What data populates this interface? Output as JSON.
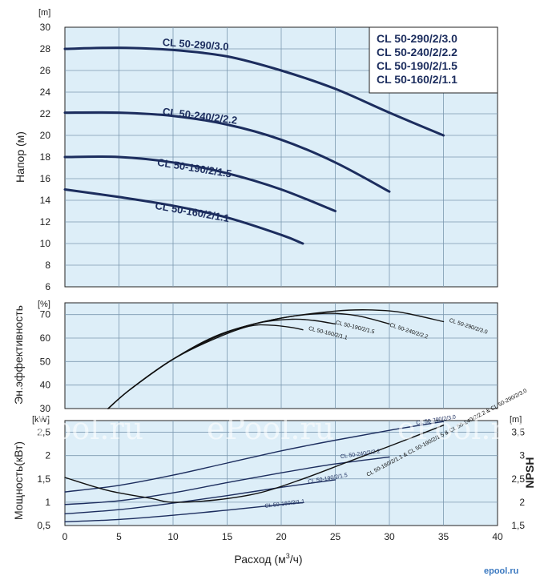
{
  "chart_data": [
    {
      "type": "line",
      "panel": "head",
      "ylabel": "Напор (м)",
      "unit_label": "[m]",
      "ylim": [
        6,
        30
      ],
      "yticks": [
        6,
        8,
        10,
        12,
        14,
        16,
        18,
        20,
        22,
        24,
        26,
        28,
        30
      ],
      "xlim": [
        0,
        40
      ],
      "grid": true,
      "legend_position": "top-right",
      "legend": [
        "CL 50-290/2/3.0",
        "CL 50-240/2/2.2",
        "CL 50-190/2/1.5",
        "CL 50-160/2/1.1"
      ],
      "series": [
        {
          "name": "CL 50-290/3.0",
          "label_at": [
            9,
            28.3
          ],
          "label_angle": 4,
          "x": [
            0,
            5,
            10,
            15,
            20,
            25,
            30,
            35
          ],
          "y": [
            28.0,
            28.1,
            27.9,
            27.3,
            26.0,
            24.3,
            22.1,
            20.0
          ]
        },
        {
          "name": "CL 50-240/2/2.2",
          "label_at": [
            9,
            21.9
          ],
          "label_angle": 7,
          "x": [
            0,
            5,
            10,
            15,
            20,
            25,
            30
          ],
          "y": [
            22.1,
            22.1,
            21.8,
            21.0,
            19.6,
            17.5,
            14.8
          ]
        },
        {
          "name": "CL 50-190/2/1.5",
          "label_at": [
            8.5,
            17.2
          ],
          "label_angle": 9,
          "x": [
            0,
            5,
            10,
            15,
            20,
            25
          ],
          "y": [
            18.0,
            18.0,
            17.5,
            16.5,
            15.0,
            13.0
          ]
        },
        {
          "name": "CL 50-160/2/1.1",
          "label_at": [
            8.3,
            13.2
          ],
          "label_angle": 10,
          "x": [
            0,
            5,
            10,
            15,
            20,
            22
          ],
          "y": [
            15.0,
            14.3,
            13.5,
            12.4,
            10.8,
            10.0
          ]
        }
      ]
    },
    {
      "type": "line",
      "panel": "efficiency",
      "ylabel": "Эн.эффективность",
      "unit_label": "[%]",
      "ylim": [
        30,
        75
      ],
      "yticks": [
        30,
        40,
        50,
        60,
        70
      ],
      "xlim": [
        0,
        40
      ],
      "grid": true,
      "series": [
        {
          "name": "CL 50-160/2/1.1",
          "label_at": [
            22.5,
            63.5
          ],
          "label_angle": 14,
          "x": [
            4,
            6,
            10,
            14,
            17,
            19,
            21,
            22
          ],
          "y": [
            30,
            38,
            51,
            60,
            65,
            65.5,
            64.5,
            63.5
          ]
        },
        {
          "name": "CL 50-190/2/1.5",
          "label_at": [
            25,
            66
          ],
          "label_angle": 14,
          "x": [
            4,
            6,
            10,
            14,
            18,
            21,
            23,
            25
          ],
          "y": [
            30,
            38,
            51,
            61,
            66.5,
            68,
            67.5,
            66
          ]
        },
        {
          "name": "CL 50-240/2/2.2",
          "label_at": [
            30,
            65
          ],
          "label_angle": 18,
          "x": [
            4,
            6,
            10,
            15,
            20,
            24,
            27,
            30
          ],
          "y": [
            30,
            38,
            51,
            62.5,
            68.5,
            70.5,
            69.5,
            66
          ]
        },
        {
          "name": "CL 50-290/2/3.0",
          "label_at": [
            35.5,
            67
          ],
          "label_angle": 18,
          "x": [
            4,
            6,
            10,
            15,
            20,
            25,
            28,
            31,
            35
          ],
          "y": [
            30,
            38,
            51,
            62.5,
            68.5,
            71.5,
            72,
            71,
            67
          ]
        }
      ]
    },
    {
      "type": "line",
      "panel": "power_npsh",
      "ylabel": "Мощность(кВт)",
      "unit_label": "[kW]",
      "ylim": [
        0.5,
        2.75
      ],
      "yticks": [
        0.5,
        1,
        1.5,
        2,
        2.5
      ],
      "ytick_labels": [
        "0,5",
        "1",
        "1,5",
        "2",
        "2,5"
      ],
      "y2label": "NPSH",
      "y2unit_label": "[m]",
      "y2lim": [
        1.5,
        3.75
      ],
      "y2ticks": [
        1.5,
        2,
        2.5,
        3,
        3.5
      ],
      "y2tick_labels": [
        "1,5",
        "2",
        "2,5",
        "3",
        "3,5"
      ],
      "xlabel": "Расход (м",
      "xlabel_sup": "3",
      "xlabel_end": "/ч)",
      "xlim": [
        0,
        40
      ],
      "xticks": [
        0,
        5,
        10,
        15,
        20,
        25,
        30,
        35,
        40
      ],
      "grid": true,
      "series": [
        {
          "name": "CL 50-290/2/3.0",
          "axis": "left",
          "label_at": [
            32.5,
            2.66
          ],
          "label_angle": -9,
          "x": [
            0,
            5,
            10,
            15,
            20,
            25,
            30,
            35
          ],
          "y": [
            1.22,
            1.36,
            1.58,
            1.84,
            2.1,
            2.33,
            2.54,
            2.73
          ]
        },
        {
          "name": "CL 50-240/2/2.2",
          "axis": "left",
          "label_at": [
            25.5,
            1.94
          ],
          "label_angle": -8,
          "x": [
            0,
            5,
            10,
            15,
            20,
            25,
            30
          ],
          "y": [
            0.95,
            1.03,
            1.2,
            1.42,
            1.63,
            1.82,
            1.97
          ]
        },
        {
          "name": "CL 50-190/2/1.5",
          "axis": "left",
          "label_at": [
            22.5,
            1.4
          ],
          "label_angle": -10,
          "x": [
            0,
            5,
            10,
            15,
            20,
            25
          ],
          "y": [
            0.75,
            0.84,
            0.98,
            1.14,
            1.32,
            1.48
          ]
        },
        {
          "name": "CL 50-160/2/1.1",
          "axis": "left",
          "label_at": [
            18.5,
            0.88
          ],
          "label_angle": -7,
          "x": [
            0,
            5,
            10,
            15,
            20,
            22
          ],
          "y": [
            0.58,
            0.63,
            0.72,
            0.83,
            0.95,
            0.99
          ]
        },
        {
          "name": "CL 50-160/2/1.1 & CL 50-190/2/1.5 & CL 50-240/2/2.2 & CL 50-290/2/3.0",
          "axis": "right",
          "label_at": [
            28,
            2.55
          ],
          "label_angle": -28,
          "x": [
            0,
            4,
            8,
            10,
            14,
            18,
            22,
            26,
            30,
            35
          ],
          "y": [
            2.53,
            2.25,
            2.08,
            2.0,
            2.05,
            2.2,
            2.5,
            2.85,
            3.2,
            3.65
          ]
        }
      ]
    }
  ],
  "watermark": [
    "ePool.ru",
    "ePool.ru",
    "ePool.ru"
  ],
  "brand": "epool.ru",
  "colors": {
    "plot_bg": "#ddeef8",
    "grid": "#7c98b0",
    "navy": "#1c2d5e",
    "black": "#111111"
  }
}
